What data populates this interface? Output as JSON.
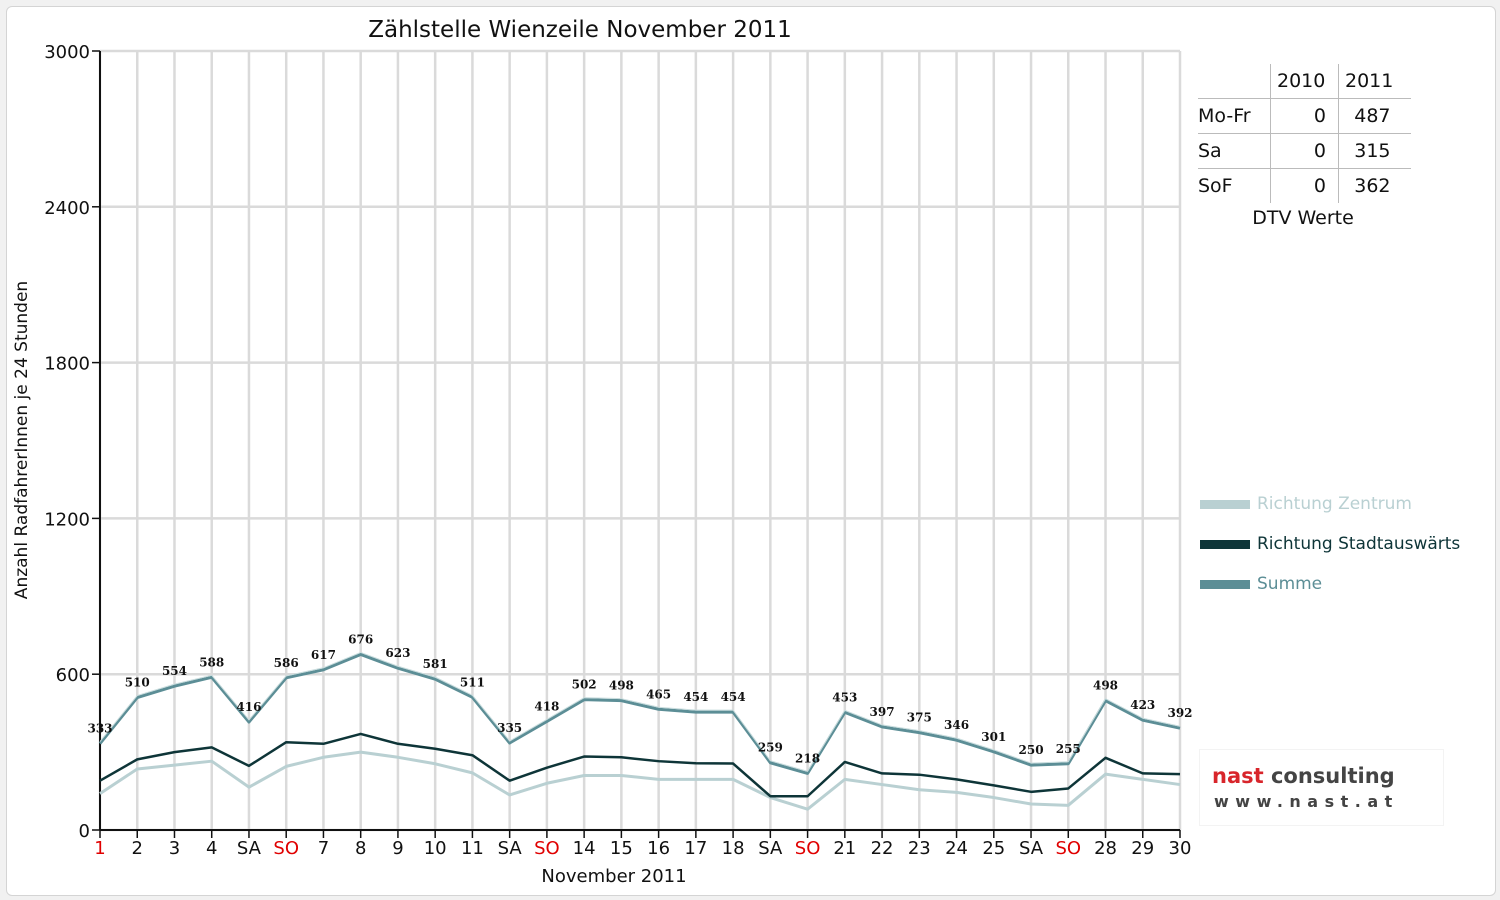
{
  "chart_data": {
    "type": "line",
    "title": "Zählstelle Wienzeile November 2011",
    "xlabel": "November 2011",
    "ylabel": "Anzahl RadfahrerInnen je 24 Stunden",
    "ylim": [
      0,
      3000
    ],
    "yticks": [
      "0",
      "600",
      "1200",
      "1800",
      "2400",
      "3000"
    ],
    "grid": true,
    "categories": [
      "1",
      "2",
      "3",
      "4",
      "SA",
      "SO",
      "7",
      "8",
      "9",
      "10",
      "11",
      "SA",
      "SO",
      "14",
      "15",
      "16",
      "17",
      "18",
      "SA",
      "SO",
      "21",
      "22",
      "23",
      "24",
      "25",
      "SA",
      "SO",
      "28",
      "29",
      "30"
    ],
    "red_categories": [
      0,
      5,
      12,
      19,
      26
    ],
    "series": [
      {
        "name": "Richtung Zentrum",
        "color": "#b9d0d2",
        "values": [
          140,
          235,
          250,
          265,
          165,
          245,
          280,
          300,
          280,
          255,
          220,
          135,
          180,
          210,
          210,
          195,
          195,
          195,
          125,
          80,
          195,
          175,
          155,
          145,
          125,
          100,
          95,
          215,
          195,
          175
        ]
      },
      {
        "name": "Richtung Stadtauswärts",
        "color": "#0e3538",
        "values": [
          190,
          272,
          300,
          318,
          247,
          338,
          332,
          370,
          332,
          313,
          288,
          190,
          240,
          283,
          280,
          265,
          257,
          256,
          130,
          130,
          262,
          218,
          213,
          195,
          172,
          147,
          160,
          278,
          218,
          215
        ]
      },
      {
        "name": "Summe",
        "color": "#5c8e96",
        "values": [
          333,
          510,
          554,
          588,
          416,
          586,
          617,
          676,
          623,
          581,
          511,
          335,
          418,
          502,
          498,
          465,
          454,
          454,
          259,
          218,
          453,
          397,
          375,
          346,
          301,
          250,
          255,
          498,
          423,
          392
        ]
      }
    ],
    "data_labels": [
      "333",
      "510",
      "554",
      "588",
      "416",
      "586",
      "617",
      "676",
      "623",
      "581",
      "511",
      "335",
      "418",
      "502",
      "498",
      "465",
      "454",
      "454",
      "259",
      "218",
      "453",
      "397",
      "375",
      "346",
      "301",
      "250",
      "255",
      "498",
      "423",
      "392"
    ],
    "legend_position": "right"
  },
  "dtv": {
    "headers": [
      "",
      "2010",
      "2011"
    ],
    "rows": [
      {
        "label": "Mo-Fr",
        "v2010": "0",
        "v2011": "487"
      },
      {
        "label": "Sa",
        "v2010": "0",
        "v2011": "315"
      },
      {
        "label": "SoF",
        "v2010": "0",
        "v2011": "362"
      }
    ],
    "caption": "DTV Werte"
  },
  "logo": {
    "line1a": "nast",
    "line1b": " consulting",
    "line2": "www.nast.at"
  }
}
